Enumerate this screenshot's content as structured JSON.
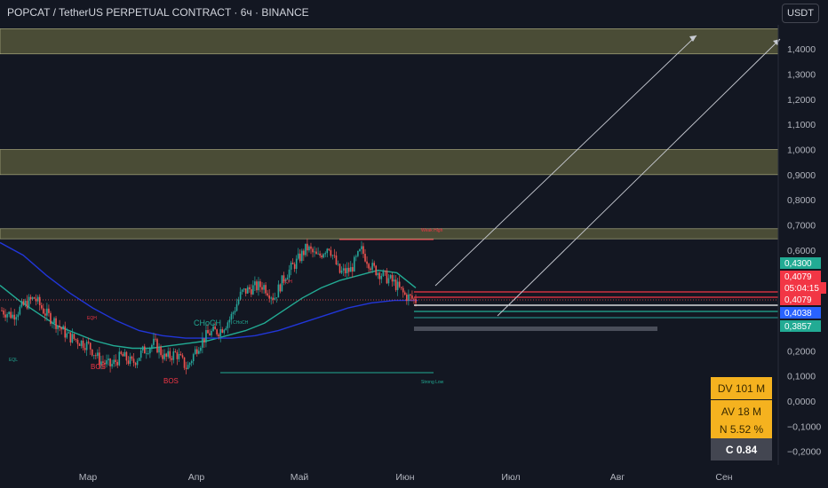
{
  "header": {
    "title": "POPCAT / TetherUS PERPETUAL CONTRACT · 6ч · BINANCE",
    "currency_button": "USDT"
  },
  "colors": {
    "background": "#131722",
    "candle_up": "#26a69a",
    "candle_down": "#ef5350",
    "ma_fast": "#22ab94",
    "ma_slow": "#2136d8",
    "zone": "#5d5f3e",
    "label_green": "#22ab94",
    "label_red": "#f23645",
    "label_blue": "#2962ff"
  },
  "chart_data": {
    "type": "candlestick",
    "x_ticks": [
      "Мар",
      "Апр",
      "Май",
      "Июн",
      "Июл",
      "Авг",
      "Сен"
    ],
    "y_ticks": [
      "1,4000",
      "1,3000",
      "1,2000",
      "1,1000",
      "1,0000",
      "0,9000",
      "0,8000",
      "0,7000",
      "0,6000",
      "0,2000",
      "0,1000",
      "0,0000",
      "−0,1000",
      "−0,2000"
    ],
    "ylim": [
      -0.2,
      1.5
    ],
    "grid": false,
    "price_path": [
      0.36,
      0.34,
      0.38,
      0.41,
      0.35,
      0.31,
      0.26,
      0.24,
      0.22,
      0.16,
      0.14,
      0.18,
      0.15,
      0.2,
      0.23,
      0.17,
      0.19,
      0.13,
      0.22,
      0.27,
      0.28,
      0.33,
      0.43,
      0.45,
      0.46,
      0.41,
      0.5,
      0.55,
      0.61,
      0.57,
      0.62,
      0.51,
      0.52,
      0.6,
      0.53,
      0.5,
      0.47,
      0.42,
      0.4
    ],
    "moving_averages": [
      {
        "color": "#22ab94",
        "values": [
          0.46,
          0.4,
          0.35,
          0.3,
          0.27,
          0.24,
          0.22,
          0.21,
          0.21,
          0.22,
          0.23,
          0.24,
          0.26,
          0.28,
          0.31,
          0.36,
          0.41,
          0.45,
          0.48,
          0.5,
          0.52,
          0.51,
          0.45
        ]
      },
      {
        "color": "#2136d8",
        "values": [
          0.63,
          0.58,
          0.5,
          0.43,
          0.37,
          0.32,
          0.28,
          0.26,
          0.25,
          0.25,
          0.25,
          0.26,
          0.28,
          0.31,
          0.34,
          0.37,
          0.39,
          0.4,
          0.4
        ]
      }
    ],
    "zones": [
      {
        "from": 1.38,
        "to": 1.48
      },
      {
        "from": 0.9,
        "to": 1.0
      },
      {
        "from": 0.645,
        "to": 0.685
      }
    ],
    "levels": [
      {
        "value": 0.43,
        "color": "#f23645"
      },
      {
        "value": 0.415,
        "color": "#f23645"
      },
      {
        "value": 0.395,
        "color": "#ffffff"
      },
      {
        "value": 0.387,
        "color": "#22ab94"
      }
    ],
    "price_labels": [
      {
        "text": "0,4300",
        "value": 0.43,
        "color": "#22ab94"
      },
      {
        "text": "0,4079",
        "value": 0.4079,
        "color": "#f23645"
      },
      {
        "text": "05:04:15",
        "value": 0.3879,
        "color": "#f23645"
      },
      {
        "text": "0,4079",
        "value": 0.4079,
        "color": "#f23645"
      },
      {
        "text": "0,4038",
        "value": 0.4038,
        "color": "#2962ff"
      },
      {
        "text": "0,3857",
        "value": 0.3857,
        "color": "#22ab94"
      }
    ],
    "annotations": [
      "Weak High",
      "Strong Low",
      "CHoCH",
      "BOS",
      "EQH",
      "EQL",
      "CHoCH",
      "BOS",
      "EQH"
    ]
  },
  "stats": {
    "dv": "DV 101 M",
    "av": "AV 18 M",
    "n": "N 5.52 %",
    "c": "C  0.84"
  }
}
